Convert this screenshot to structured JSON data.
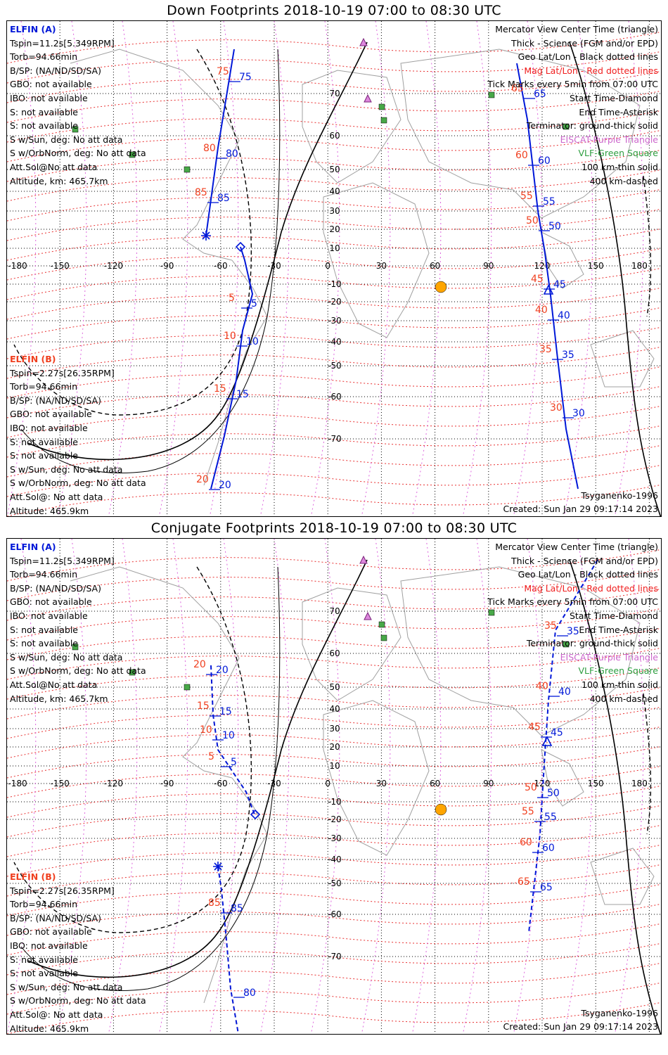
{
  "plots": [
    {
      "title": "Down Footprints 2018-10-19 07:00 to 08:30 UTC",
      "elfin_a": {
        "header": "ELFIN (A)",
        "lines": [
          "Tspin=11.2s[5.349RPM]",
          "Torb=94.66min",
          "B/SP: (NA/ND/SD/SA)",
          "GBO: not available",
          "IBO: not available",
          "S: not available",
          "S: not available",
          "S w/Sun, deg: No att data",
          "S w/OrbNorm, deg: No att data",
          "Att.Sol@No att data",
          "Altitude, km: 465.7km"
        ]
      },
      "elfin_b": {
        "header": "ELFIN (B)",
        "lines": [
          "Tspin=2.27s[26.35RPM]",
          "Torb=94.66min",
          "B/SP: (NA/ND/SD/SA)",
          "GBO: not available",
          "IBO: not available",
          "S: not available",
          "S: not available",
          "S w/Sun, deg: No att data",
          "S w/OrbNorm, deg: No att data",
          "Att.Sol@: No att data",
          "Altitude: 465.9km"
        ]
      },
      "legend": [
        "Mercator View Center Time (triangle)",
        "Thick - Science (FGM and/or EPD)",
        "Geo Lat/Lon - Black dotted lines",
        "Mag Lat/Lon - Red dotted lines",
        "Tick Marks every 5min from 07:00 UTC",
        "Start Time-Diamond",
        "End Time-Asterisk",
        "Terminator: ground-thick solid",
        "EISCAT-Purple Triangle",
        "VLF-Green Square",
        "100 km-thin solid",
        "400 km-dashed"
      ],
      "model": "Tsyganenko-1996",
      "created": "Created: Sun Jan 29 09:17:14 2023"
    },
    {
      "title": "Conjugate Footprints 2018-10-19 07:00 to 08:30 UTC",
      "elfin_a": {
        "header": "ELFIN (A)",
        "lines": [
          "Tspin=11.2s[5.349RPM]",
          "Torb=94.66min",
          "B/SP: (NA/ND/SD/SA)",
          "GBO: not available",
          "IBO: not available",
          "S: not available",
          "S: not available",
          "S w/Sun, deg: No att data",
          "S w/OrbNorm, deg: No att data",
          "Att.Sol@No att data",
          "Altitude, km: 465.7km"
        ]
      },
      "elfin_b": {
        "header": "ELFIN (B)",
        "lines": [
          "Tspin=2.27s[26.35RPM]",
          "Torb=94.66min",
          "B/SP: (NA/ND/SD/SA)",
          "GBO: not available",
          "IBO: not available",
          "S: not available",
          "S: not available",
          "S w/Sun, deg: No att data",
          "S w/OrbNorm, deg: No att data",
          "Att.Sol@: No att data",
          "Altitude: 465.9km"
        ]
      },
      "legend": [
        "Mercator View Center Time (triangle)",
        "Thick - Science (FGM and/or EPD)",
        "Geo Lat/Lon - Black dotted lines",
        "Mag Lat/Lon - Red dotted lines",
        "Tick Marks every 5min from 07:00 UTC",
        "Start Time-Diamond",
        "End Time-Asterisk",
        "Terminator: ground-thick solid",
        "EISCAT-Purple Triangle",
        "VLF-Green Square",
        "100 km-thin solid",
        "400 km-dashed"
      ],
      "model": "Tsyganenko-1996",
      "created": "Created: Sun Jan 29 09:17:14 2023"
    }
  ],
  "axis": {
    "lon_labels": [
      "-180",
      "-150",
      "-120",
      "-90",
      "-60",
      "-30",
      "0",
      "30",
      "60",
      "90",
      "120",
      "150",
      "180"
    ],
    "lat_labels": [
      "70",
      "60",
      "50",
      "40",
      "30",
      "20",
      "10",
      "0",
      "-10",
      "-20",
      "-30",
      "-40",
      "-50",
      "-60",
      "-70"
    ]
  },
  "colors": {
    "track": "#0018d8",
    "mag": "#f04020",
    "eiscat": "#cc66cc",
    "vlf": "#2e9e40",
    "sun": "#ffa500",
    "ink": "#000000"
  },
  "icons": {
    "start": "diamond",
    "end": "asterisk",
    "view_center": "triangle",
    "sun": "sun-symbol",
    "eiscat": "purple-triangle",
    "vlf": "green-square"
  },
  "tracks": {
    "down": {
      "west": {
        "ticks_a": [
          "75",
          "80",
          "85"
        ],
        "ticks_b": [
          "75",
          "80",
          "85"
        ],
        "start_ticks_a": [
          "5",
          "10",
          "15",
          "20"
        ],
        "start_ticks_b": [
          "5",
          "10",
          "15",
          "20"
        ]
      },
      "east": {
        "ticks_a": [
          "65",
          "60",
          "55",
          "50",
          "45",
          "40",
          "35",
          "30"
        ],
        "ticks_b": [
          "65",
          "60",
          "55",
          "50",
          "45",
          "40",
          "35",
          "30"
        ]
      }
    },
    "conjugate": {
      "west": {
        "ticks_a": [
          "20",
          "15",
          "10",
          "5",
          "85",
          "80"
        ],
        "ticks_b": [
          "20",
          "15",
          "10",
          "5",
          "85"
        ]
      },
      "east": {
        "ticks_a": [
          "35",
          "40",
          "45",
          "50",
          "55",
          "60",
          "65"
        ],
        "ticks_b": [
          "35",
          "40",
          "45",
          "50",
          "55",
          "60",
          "65"
        ]
      }
    }
  }
}
